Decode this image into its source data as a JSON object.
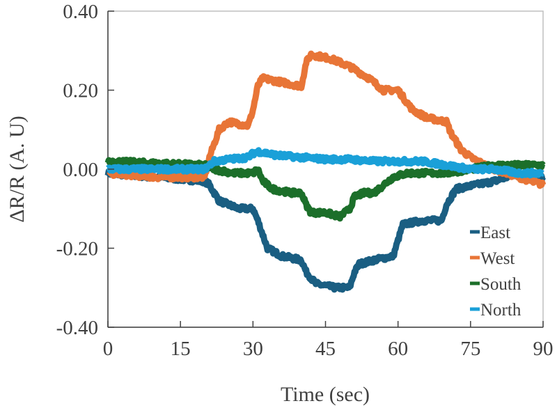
{
  "chart_data": {
    "type": "line",
    "title": "",
    "xlabel": "Time (sec)",
    "ylabel": "ΔR/R (A. U)",
    "xlim": [
      0,
      90
    ],
    "ylim": [
      -0.4,
      0.4
    ],
    "xticks": [
      "0",
      "15",
      "30",
      "45",
      "60",
      "75",
      "90"
    ],
    "xtick_values": [
      0,
      15,
      30,
      45,
      60,
      75,
      90
    ],
    "yticks": [
      "0.40",
      "0.20",
      "0.00",
      "-0.20",
      "-0.40"
    ],
    "ytick_values": [
      0.4,
      0.2,
      0.0,
      -0.2,
      -0.4
    ],
    "grid": false,
    "legend_position": "bottom-right",
    "series": [
      {
        "name": "East",
        "color": "#1a5e82",
        "x": [
          0,
          10,
          20,
          21,
          23,
          27,
          30,
          31,
          33,
          36,
          40,
          41,
          43,
          47,
          50,
          51,
          52,
          55,
          59,
          60,
          61,
          65,
          69,
          70,
          72,
          76,
          80,
          85,
          90
        ],
        "y": [
          -0.01,
          -0.02,
          -0.03,
          -0.04,
          -0.08,
          -0.1,
          -0.1,
          -0.13,
          -0.2,
          -0.22,
          -0.23,
          -0.26,
          -0.29,
          -0.3,
          -0.3,
          -0.26,
          -0.24,
          -0.23,
          -0.22,
          -0.18,
          -0.14,
          -0.13,
          -0.13,
          -0.09,
          -0.05,
          -0.04,
          -0.03,
          -0.01,
          -0.02
        ]
      },
      {
        "name": "West",
        "color": "#e87537",
        "x": [
          0,
          10,
          20,
          21,
          23,
          25,
          29,
          30,
          31,
          32,
          36,
          40,
          41,
          42,
          46,
          50,
          54,
          57,
          60,
          63,
          66,
          70,
          71,
          73,
          75,
          78,
          80,
          85,
          90
        ],
        "y": [
          -0.01,
          -0.02,
          -0.02,
          0.03,
          0.1,
          0.12,
          0.11,
          0.15,
          0.21,
          0.23,
          0.22,
          0.21,
          0.27,
          0.29,
          0.28,
          0.26,
          0.23,
          0.2,
          0.2,
          0.15,
          0.13,
          0.12,
          0.09,
          0.05,
          0.03,
          0.01,
          0.0,
          -0.02,
          -0.04
        ]
      },
      {
        "name": "South",
        "color": "#1c6f2a",
        "x": [
          0,
          10,
          20,
          22,
          26,
          30,
          31,
          32,
          34,
          38,
          40,
          41,
          42,
          45,
          48,
          50,
          51,
          53,
          55,
          57,
          59,
          62,
          66,
          70,
          75,
          80,
          85,
          90
        ],
        "y": [
          0.02,
          0.015,
          0.01,
          0.0,
          -0.01,
          -0.01,
          0.0,
          -0.03,
          -0.05,
          -0.06,
          -0.06,
          -0.09,
          -0.11,
          -0.11,
          -0.12,
          -0.1,
          -0.07,
          -0.06,
          -0.06,
          -0.04,
          -0.02,
          -0.01,
          -0.01,
          -0.01,
          0.0,
          0.01,
          0.01,
          0.01
        ]
      },
      {
        "name": "North",
        "color": "#1aa0d8",
        "x": [
          0,
          10,
          20,
          22,
          25,
          29,
          30,
          31,
          35,
          40,
          45,
          50,
          55,
          60,
          65,
          70,
          75,
          80,
          85,
          90
        ],
        "y": [
          0.0,
          0.0,
          0.0,
          0.02,
          0.025,
          0.03,
          0.04,
          0.045,
          0.035,
          0.03,
          0.025,
          0.025,
          0.02,
          0.02,
          0.02,
          0.01,
          0.0,
          0.0,
          -0.01,
          -0.01
        ]
      }
    ]
  }
}
